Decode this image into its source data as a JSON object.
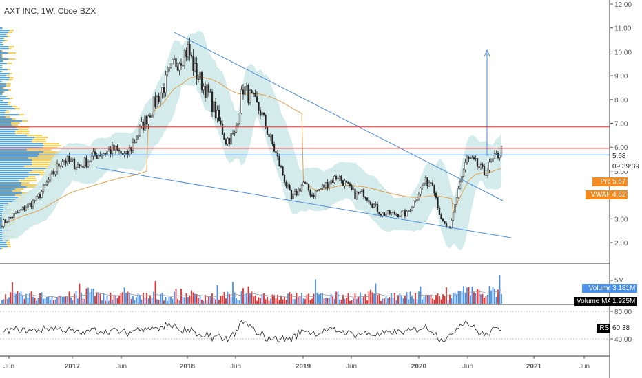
{
  "header": {
    "title": "AXT INC, 1W, Cboe BZX"
  },
  "colors": {
    "up": "#4a8fe8",
    "down": "#e32e2e",
    "candle": "#222222",
    "band": "#cde8e8",
    "vwap": "#e0a050",
    "trendline": "#4a8ad8",
    "resistance": "#e83030",
    "profile_orange": "#f5c842",
    "profile_blue": "#4a9fe8"
  },
  "chart_data": [
    {
      "type": "candlestick",
      "yaxis": {
        "ticks": [
          "12.00",
          "11.00",
          "10.00",
          "9.00",
          "8.00",
          "7.00",
          "6.00",
          "5.00",
          "4.00",
          "3.00",
          "2.00"
        ],
        "ylim": [
          1.4,
          12.2
        ]
      },
      "xaxis": {
        "ticks": [
          "Jun",
          "2017",
          "Jun",
          "2018",
          "Jun",
          "2019",
          "Jun",
          "2020",
          "Jun",
          "2021",
          "Jun"
        ]
      },
      "close_anchors": [
        [
          0,
          2.8
        ],
        [
          20,
          3.8
        ],
        [
          35,
          5.5
        ],
        [
          45,
          5.2
        ],
        [
          55,
          5.7
        ],
        [
          65,
          5.9
        ],
        [
          72,
          5.6
        ],
        [
          80,
          6.7
        ],
        [
          95,
          8.7
        ],
        [
          100,
          9.5
        ],
        [
          108,
          10.1
        ],
        [
          112,
          9.2
        ],
        [
          120,
          8.2
        ],
        [
          130,
          6.3
        ],
        [
          135,
          6.5
        ],
        [
          140,
          8.5
        ],
        [
          150,
          7.5
        ],
        [
          160,
          5.5
        ],
        [
          168,
          3.8
        ],
        [
          175,
          4.5
        ],
        [
          180,
          4.0
        ],
        [
          195,
          4.8
        ],
        [
          205,
          4.0
        ],
        [
          210,
          4.1
        ],
        [
          220,
          3.2
        ],
        [
          235,
          3.2
        ],
        [
          245,
          4.5
        ],
        [
          250,
          4.6
        ],
        [
          255,
          2.9
        ],
        [
          260,
          2.5
        ],
        [
          265,
          4.3
        ],
        [
          270,
          5.5
        ],
        [
          275,
          5.3
        ],
        [
          280,
          4.9
        ],
        [
          285,
          5.4
        ],
        [
          290,
          5.9
        ]
      ],
      "pre_price_label": "Pre",
      "pre_price": "5.67",
      "vwap_label": "VWAP",
      "vwap": "4.62",
      "last_price": "5.68",
      "countdown": "09:39:39",
      "resistance_levels": [
        6.85,
        5.95
      ],
      "support_level": 5.68
    },
    {
      "type": "bar",
      "name": "Volume",
      "ticks": [
        "5M"
      ],
      "volume_label": "Volume",
      "volume": "3.181M",
      "ma_label": "Volume MA",
      "ma": "1.925M"
    },
    {
      "type": "line",
      "name": "RSI",
      "ticks": [
        "80.00",
        "40.00"
      ],
      "rsi_label": "RSI",
      "rsi": "60.38",
      "ylim": [
        20,
        90
      ]
    }
  ]
}
